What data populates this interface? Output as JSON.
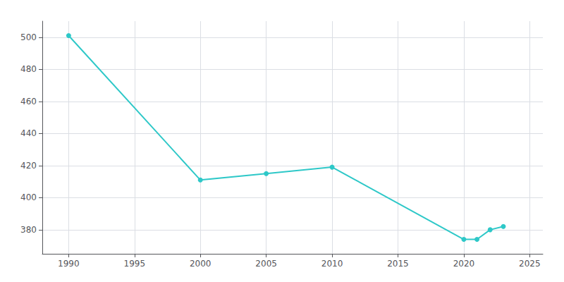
{
  "chart_data": {
    "type": "line",
    "x": [
      1990,
      2000,
      2005,
      2010,
      2020,
      2021,
      2022,
      2023
    ],
    "values": [
      501,
      411,
      415,
      419,
      374,
      374,
      380,
      382
    ],
    "color": "#2EC8C8",
    "marker": "circle",
    "xlim": [
      1988,
      2026
    ],
    "xticks": [
      1990,
      1995,
      2000,
      2005,
      2010,
      2015,
      2020,
      2025
    ],
    "ylim": [
      365,
      510
    ],
    "yticks": [
      380,
      400,
      420,
      440,
      460,
      480,
      500
    ],
    "grid": true
  }
}
